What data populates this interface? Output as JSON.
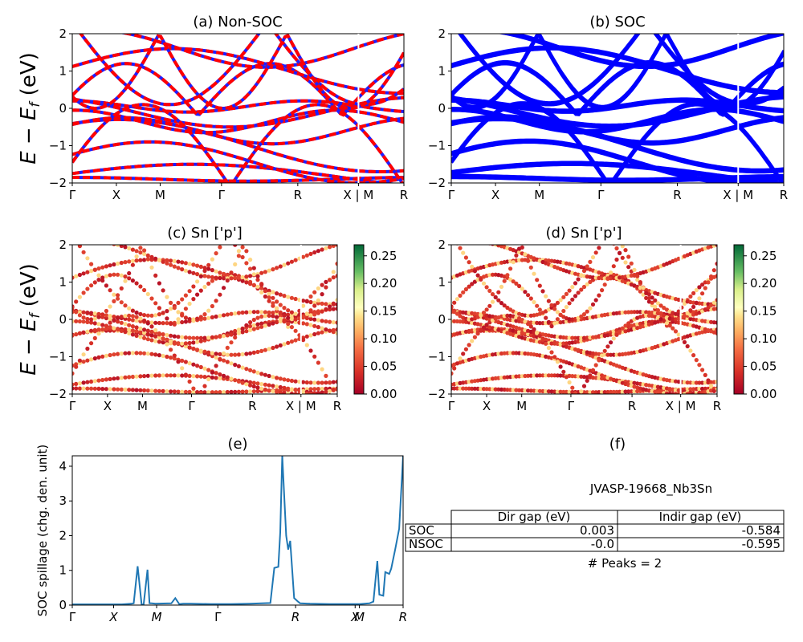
{
  "panels": {
    "a": {
      "title": "(a) Non-SOC"
    },
    "b": {
      "title": "(b) SOC"
    },
    "c": {
      "title": "(c)  Sn ['p']"
    },
    "d": {
      "title": "(d) Sn ['p']"
    },
    "e": {
      "title": "(e)"
    },
    "f": {
      "title": "(f)"
    }
  },
  "ylabel_band": "E − E_f (eV)",
  "ylabel_band_parts": {
    "E": "E",
    "minus": " − ",
    "Ef_main": "E",
    "Ef_sub": "f",
    "unit": " (eV)"
  },
  "band_yticks": [
    "2",
    "1",
    "0",
    "−1",
    "−2"
  ],
  "kpath_labels": [
    "Γ",
    "X",
    "M",
    "Γ",
    "R",
    "X | M",
    "R"
  ],
  "colorbar_ticks": [
    "0.25",
    "0.20",
    "0.15",
    "0.10",
    "0.05",
    "0.00"
  ],
  "colors": {
    "nonsoc_up": "#ff0000",
    "nonsoc_dn": "#1f1fff",
    "soc": "#0000ff",
    "spillage": "#1f77b4"
  },
  "chart_data": [
    {
      "panel": "e",
      "type": "line",
      "ylabel": "SOC spillage (chg. den. unit)",
      "xticklabels": [
        "Γ",
        "X",
        "M",
        "Γ",
        "R",
        "X",
        "M",
        "R"
      ],
      "yticklabels": [
        "0",
        "1",
        "2",
        "3",
        "4"
      ],
      "ylim": [
        0,
        4.3
      ],
      "x": [
        0,
        0.05,
        0.1,
        0.15,
        0.2,
        0.25,
        0.3,
        0.31,
        0.33,
        0.35,
        0.36,
        0.38,
        0.39,
        0.4,
        0.42,
        0.5,
        0.52,
        0.54,
        0.56,
        0.6,
        0.7,
        0.8,
        0.9,
        1.0,
        1.02,
        1.04,
        1.05,
        1.06,
        1.08,
        1.09,
        1.1,
        1.12,
        1.14,
        1.15,
        1.2,
        1.3,
        1.4,
        1.45,
        1.5,
        1.52,
        1.54,
        1.55,
        1.57,
        1.58,
        1.6,
        1.61,
        1.63,
        1.65,
        1.67
      ],
      "y": [
        0.02,
        0.02,
        0.02,
        0.02,
        0.02,
        0.02,
        0.04,
        0.05,
        1.12,
        0.03,
        0.0,
        1.02,
        0.05,
        0.05,
        0.04,
        0.05,
        0.2,
        0.03,
        0.04,
        0.04,
        0.03,
        0.03,
        0.04,
        0.06,
        1.07,
        1.1,
        2.1,
        4.3,
        2.0,
        1.6,
        1.85,
        0.2,
        0.1,
        0.05,
        0.04,
        0.03,
        0.03,
        0.03,
        0.05,
        0.1,
        1.27,
        0.3,
        0.27,
        0.95,
        0.9,
        1.05,
        1.6,
        2.2,
        4.3
      ]
    }
  ],
  "table": {
    "title": "JVASP-19668_Nb3Sn",
    "headers": [
      "Dir gap (eV)",
      "Indir gap (eV)"
    ],
    "rows": [
      {
        "label": "SOC",
        "dir": "0.003",
        "indir": "-0.584"
      },
      {
        "label": "NSOC",
        "dir": "-0.0",
        "indir": "-0.595"
      }
    ],
    "peaks": "# Peaks = 2"
  }
}
